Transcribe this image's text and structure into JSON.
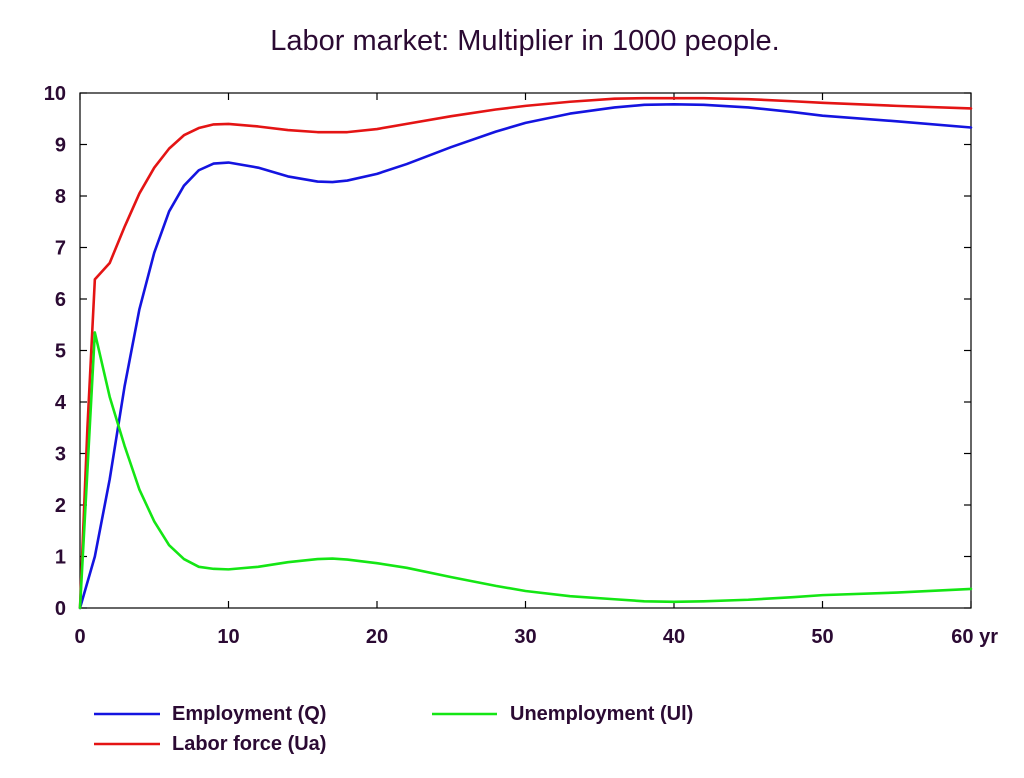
{
  "chart_data": {
    "type": "line",
    "title": "Labor market: Multiplier in 1000 people.",
    "xlabel": "",
    "ylabel": "",
    "x_unit_label": "yr",
    "xlim": [
      0,
      60
    ],
    "ylim": [
      0,
      10
    ],
    "xticks": [
      0,
      10,
      20,
      30,
      40,
      50,
      60
    ],
    "xtick_labels": [
      "0",
      "10",
      "20",
      "30",
      "40",
      "50",
      "60 yr"
    ],
    "yticks": [
      0,
      1,
      2,
      3,
      4,
      5,
      6,
      7,
      8,
      9,
      10
    ],
    "ytick_labels": [
      "0",
      "1",
      "2",
      "3",
      "4",
      "5",
      "6",
      "7",
      "8",
      "9",
      "10"
    ],
    "grid": false,
    "legend_position": "bottom",
    "series": [
      {
        "name": "Employment (Q)",
        "color": "#1414e0",
        "x": [
          0,
          1,
          2,
          3,
          4,
          5,
          6,
          7,
          8,
          9,
          10,
          12,
          14,
          16,
          17,
          18,
          20,
          22,
          25,
          28,
          30,
          33,
          36,
          38,
          40,
          42,
          45,
          48,
          50,
          55,
          60
        ],
        "y": [
          0,
          1.0,
          2.5,
          4.3,
          5.8,
          6.9,
          7.7,
          8.2,
          8.5,
          8.63,
          8.65,
          8.55,
          8.38,
          8.28,
          8.27,
          8.3,
          8.43,
          8.62,
          8.95,
          9.25,
          9.42,
          9.6,
          9.72,
          9.77,
          9.78,
          9.77,
          9.72,
          9.63,
          9.56,
          9.45,
          9.33
        ]
      },
      {
        "name": "Labor force (Ua)",
        "color": "#e41414",
        "x": [
          0,
          0.5,
          1,
          2,
          3,
          4,
          5,
          6,
          7,
          8,
          9,
          10,
          12,
          14,
          16,
          18,
          20,
          22,
          25,
          28,
          30,
          33,
          36,
          38,
          40,
          42,
          45,
          48,
          50,
          55,
          60
        ],
        "y": [
          0,
          3.5,
          6.38,
          6.7,
          7.4,
          8.05,
          8.55,
          8.92,
          9.18,
          9.32,
          9.39,
          9.4,
          9.35,
          9.28,
          9.24,
          9.24,
          9.3,
          9.4,
          9.55,
          9.68,
          9.75,
          9.83,
          9.89,
          9.9,
          9.9,
          9.9,
          9.88,
          9.84,
          9.81,
          9.75,
          9.7
        ]
      },
      {
        "name": "Unemployment (Ul)",
        "color": "#14e614",
        "x": [
          0,
          1,
          2,
          3,
          4,
          5,
          6,
          7,
          8,
          9,
          10,
          12,
          14,
          16,
          17,
          18,
          20,
          22,
          25,
          28,
          30,
          33,
          36,
          38,
          40,
          42,
          45,
          48,
          50,
          55,
          60
        ],
        "y": [
          0,
          5.35,
          4.1,
          3.15,
          2.3,
          1.68,
          1.22,
          0.95,
          0.8,
          0.76,
          0.75,
          0.8,
          0.89,
          0.95,
          0.96,
          0.94,
          0.87,
          0.78,
          0.6,
          0.43,
          0.33,
          0.23,
          0.17,
          0.13,
          0.12,
          0.13,
          0.16,
          0.21,
          0.25,
          0.3,
          0.37
        ]
      }
    ]
  }
}
